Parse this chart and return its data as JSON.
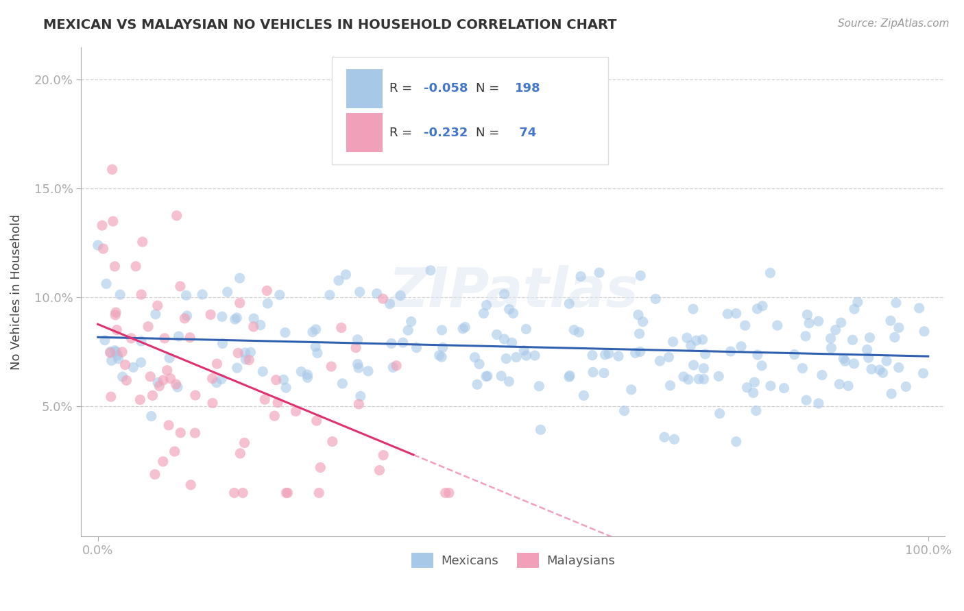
{
  "title": "MEXICAN VS MALAYSIAN NO VEHICLES IN HOUSEHOLD CORRELATION CHART",
  "source": "Source: ZipAtlas.com",
  "ylabel": "No Vehicles in Household",
  "watermark": "ZIPatlas",
  "blue_R": -0.058,
  "blue_N": 198,
  "pink_R": -0.232,
  "pink_N": 74,
  "blue_color": "#a8c8e8",
  "pink_color": "#f0a0b8",
  "blue_line_color": "#3060b0",
  "pink_line_color": "#e03070",
  "xlim": [
    -0.02,
    1.02
  ],
  "ylim": [
    -0.01,
    0.215
  ],
  "x_ticks": [
    0.0,
    1.0
  ],
  "x_tick_labels": [
    "0.0%",
    "100.0%"
  ],
  "y_ticks": [
    0.05,
    0.1,
    0.15,
    0.2
  ],
  "y_tick_labels": [
    "5.0%",
    "10.0%",
    "15.0%",
    "20.0%"
  ],
  "legend_labels": [
    "Mexicans",
    "Malaysians"
  ],
  "background_color": "#ffffff",
  "grid_color": "#cccccc"
}
